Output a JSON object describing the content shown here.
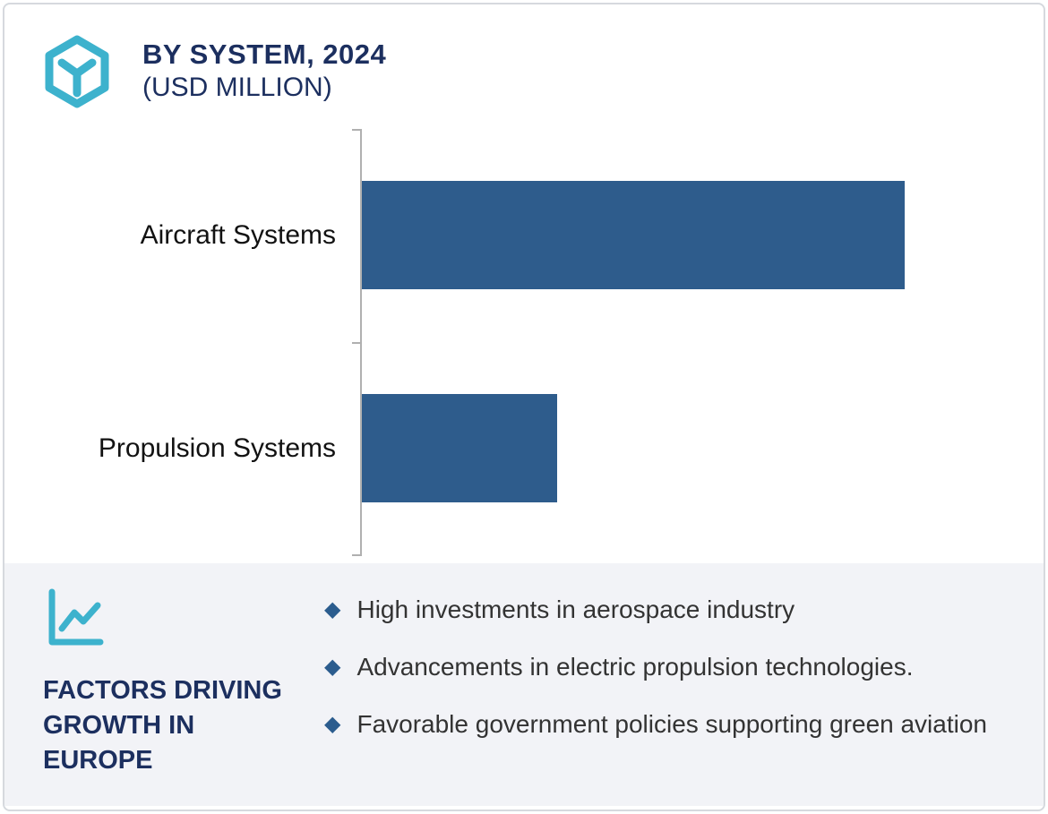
{
  "header": {
    "title": "BY SYSTEM, 2024",
    "subtitle": "(USD MILLION)"
  },
  "chart_data": {
    "type": "bar",
    "orientation": "horizontal",
    "title": "BY SYSTEM, 2024",
    "subtitle": "(USD MILLION)",
    "unit": "USD Million",
    "categories": [
      "Aircraft Systems",
      "Propulsion Systems"
    ],
    "values_relative_pct_of_max": [
      100,
      36
    ],
    "value_labels_shown": false,
    "numeric_axis_shown": false,
    "gridlines": false,
    "legend": "none",
    "bar_color": "#2e5c8c"
  },
  "factors": {
    "heading": "FACTORS DRIVING GROWTH IN EUROPE",
    "bullet_glyph": "◆",
    "items": [
      "High investments in aerospace industry",
      "Advancements in electric propulsion technologies.",
      "Favorable government policies supporting green aviation"
    ]
  },
  "icons": {
    "brand": "hexagon-y-cube-icon",
    "panel": "line-chart-icon",
    "bullet": "diamond-icon"
  },
  "colors": {
    "accent_teal": "#3db2cd",
    "navy": "#1c2f5f",
    "bar_blue": "#2e5c8c",
    "panel_bg": "#f2f3f7",
    "axis_gray": "#b0b0b0",
    "diamond_blue": "#2b5c8e",
    "text_dark": "#333333",
    "border_gray": "#d6d9de"
  }
}
